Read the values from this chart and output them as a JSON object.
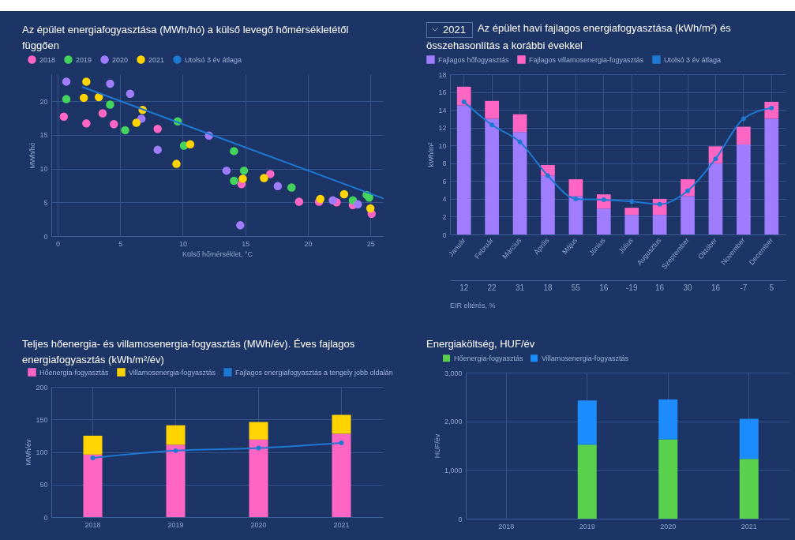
{
  "chart_data": [
    {
      "type": "scatter",
      "title": "Az épület energiafogyasztása (MWh/hó) a külső levegő hőmérsékletétől függően",
      "xlabel": "Külső hőmérséklet, °C",
      "ylabel": "MWh/hó",
      "xlim": [
        -0.5,
        26
      ],
      "xticks": [
        0,
        5,
        10,
        15,
        20,
        25
      ],
      "ylim": [
        0,
        24
      ],
      "yticks": [
        0,
        5,
        10,
        15,
        20
      ],
      "grid": true,
      "legend": "top left",
      "marker": "circle",
      "series": [
        {
          "name": "2018",
          "color": "#ff66c4",
          "x": [
            0.5,
            2.3,
            3.6,
            4.5,
            8.0,
            14.7,
            17.0,
            19.3,
            20.9,
            22.3,
            23.6,
            25.1
          ],
          "values": [
            17.7,
            16.7,
            18.2,
            16.6,
            15.9,
            7.7,
            9.2,
            5.1,
            5.1,
            5.0,
            4.6,
            3.3
          ]
        },
        {
          "name": "2019",
          "color": "#44d35c",
          "x": [
            0.7,
            4.2,
            5.4,
            9.6,
            10.1,
            14.1,
            14.1,
            14.9,
            18.7,
            23.6,
            24.7,
            24.9
          ],
          "values": [
            20.3,
            19.5,
            15.7,
            17.0,
            13.4,
            12.6,
            8.2,
            9.7,
            7.2,
            5.3,
            6.1,
            5.7
          ]
        },
        {
          "name": "2020",
          "color": "#a07cff",
          "x": [
            0.7,
            4.2,
            5.8,
            6.7,
            8.0,
            12.1,
            13.5,
            14.6,
            17.6,
            22.0,
            24.0
          ],
          "values": [
            22.9,
            22.6,
            21.1,
            17.4,
            12.8,
            14.9,
            9.7,
            1.6,
            7.4,
            5.3,
            4.7
          ]
        },
        {
          "name": "2021",
          "color": "#ffd400",
          "x": [
            2.3,
            2.1,
            3.3,
            6.3,
            6.8,
            9.5,
            10.6,
            14.8,
            16.5,
            21.0,
            22.9,
            25.0
          ],
          "values": [
            22.9,
            20.5,
            20.6,
            16.8,
            18.7,
            10.7,
            13.6,
            8.5,
            8.6,
            5.5,
            6.2,
            4.1
          ]
        },
        {
          "name": "Utolsó 3 év átlaga",
          "type": "line",
          "color": "#1f78d1",
          "marker": "none",
          "x": [
            2,
            26
          ],
          "values": [
            22.1,
            5.6
          ]
        }
      ]
    },
    {
      "type": "bar",
      "title": "Az épület havi fajlagos energiafogyasztása (kWh/m²) és összehasonlítás a korábbi évekkel",
      "annotations": [
        "2021"
      ],
      "ylabel": "kWh/m²",
      "ylim": [
        0,
        18
      ],
      "yticks": [
        0,
        2,
        4,
        6,
        8,
        10,
        12,
        14,
        16,
        18
      ],
      "grid": true,
      "legend": "top left",
      "stacked": true,
      "marker": "circle",
      "categories": [
        "Január",
        "Február",
        "Március",
        "Április",
        "Május",
        "Június",
        "Július",
        "Augusztus",
        "Szeptember",
        "Október",
        "November",
        "December"
      ],
      "series": [
        {
          "name": "Fajlagos hőfogyasztás",
          "color": "#a07cff",
          "values": [
            14.5,
            13.0,
            11.5,
            6.6,
            4.3,
            2.9,
            2.2,
            2.2,
            4.3,
            8.0,
            10.1,
            13.0
          ]
        },
        {
          "name": "Fajlagos villamosenergia-fogyasztás",
          "color": "#ff66c4",
          "values": [
            2.1,
            2.0,
            2.0,
            1.2,
            1.9,
            1.6,
            0.8,
            1.8,
            1.9,
            1.9,
            2.0,
            1.9
          ]
        },
        {
          "name": "Utolsó 3 év átlaga",
          "type": "line",
          "color": "#1f78d1",
          "values": [
            14.9,
            12.3,
            10.4,
            6.6,
            4.0,
            3.9,
            3.7,
            3.4,
            4.9,
            8.5,
            13.0,
            14.2
          ]
        }
      ]
    },
    {
      "type": "other",
      "title": "EIR eltérés, %",
      "data_labels": true,
      "categories": [
        null,
        null,
        null,
        null,
        null,
        null,
        null,
        null,
        null,
        null,
        null,
        null
      ],
      "values": [
        12,
        22,
        31,
        18,
        55,
        16,
        -19,
        16,
        30,
        16,
        -7,
        5
      ]
    },
    {
      "type": "bar",
      "title": "Teljes hőenergia- és villamosenergia-fogyasztás (MWh/év). Éves fajlagos energiafogyasztás (kWh/m²/év)",
      "ylabel": "MWh/év",
      "ylim": [
        0,
        200
      ],
      "yticks": [
        0,
        50,
        100,
        150,
        200
      ],
      "grid": true,
      "legend": "top left",
      "stacked": true,
      "marker": "circle",
      "categories": [
        "2018",
        "2019",
        "2020",
        "2021"
      ],
      "series": [
        {
          "name": "Hőenergia-fogyasztás",
          "color": "#ff66c4",
          "values": [
            96,
            111,
            119,
            128
          ]
        },
        {
          "name": "Villamosenergia-fogyasztás",
          "color": "#ffd400",
          "values": [
            29,
            30,
            27,
            29
          ]
        },
        {
          "name": "Fajlagos energiafogyasztás a tengely jobb oldalán",
          "type": "line",
          "color": "#1f78d1",
          "values": [
            91,
            102,
            106,
            114
          ]
        }
      ]
    },
    {
      "type": "bar",
      "title": "Energiaköltség, HUF/év",
      "ylabel": "HUF/év",
      "ylim": [
        0,
        3000
      ],
      "yticks": [
        0,
        {
          "value": 1000,
          "label": "1,000"
        },
        {
          "value": 2000,
          "label": "2,000"
        },
        {
          "value": 3000,
          "label": "3,000"
        }
      ],
      "grid": true,
      "legend": "top left",
      "stacked": true,
      "categories": [
        "2018",
        "2019",
        "2020",
        "2021"
      ],
      "series": [
        {
          "name": "Hőenergia-fogyasztás",
          "color": "#5ad14c",
          "values": [
            null,
            1520,
            1630,
            1230
          ]
        },
        {
          "name": "Villamosenergia-fogyasztás",
          "color": "#1c8cff",
          "values": [
            null,
            910,
            820,
            820
          ]
        }
      ]
    }
  ]
}
